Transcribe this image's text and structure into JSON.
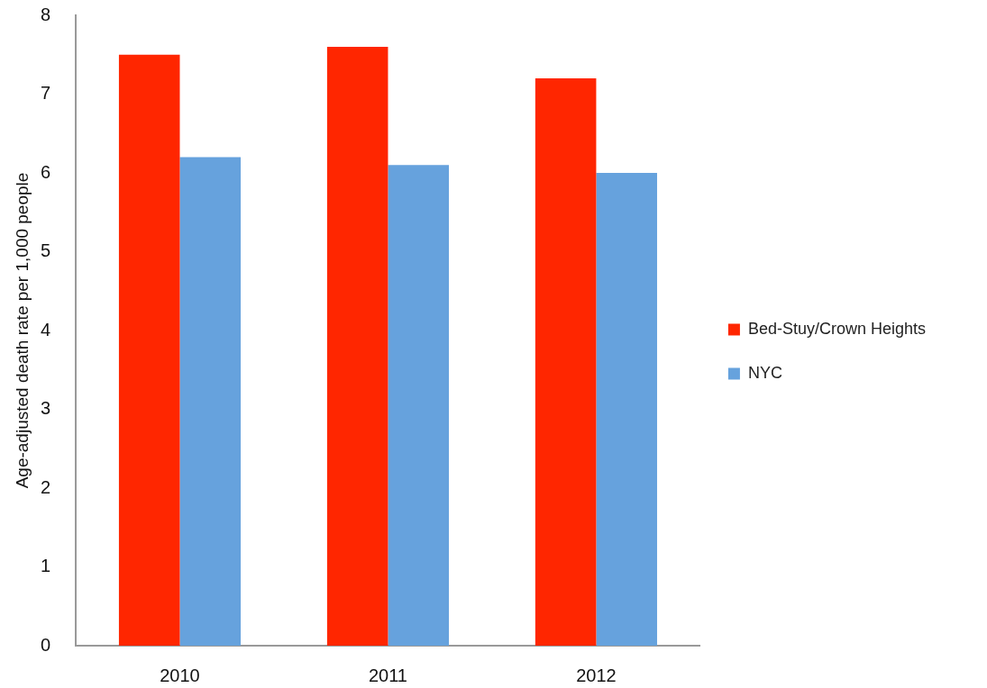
{
  "chart_data": {
    "type": "bar",
    "ylabel": "Age-adjusted death rate per 1,000 people",
    "categories": [
      "2010",
      "2011",
      "2012"
    ],
    "series": [
      {
        "name": "Bed-Stuy/Crown Heights",
        "color": "#ff2600",
        "values": [
          7.5,
          7.6,
          7.2
        ]
      },
      {
        "name": "NYC",
        "color": "#66a2dd",
        "values": [
          6.2,
          6.1,
          6.0
        ]
      }
    ],
    "ylim": [
      0,
      8
    ],
    "yticks": [
      0,
      1,
      2,
      3,
      4,
      5,
      6,
      7,
      8
    ],
    "grid": false,
    "legend": "right"
  }
}
